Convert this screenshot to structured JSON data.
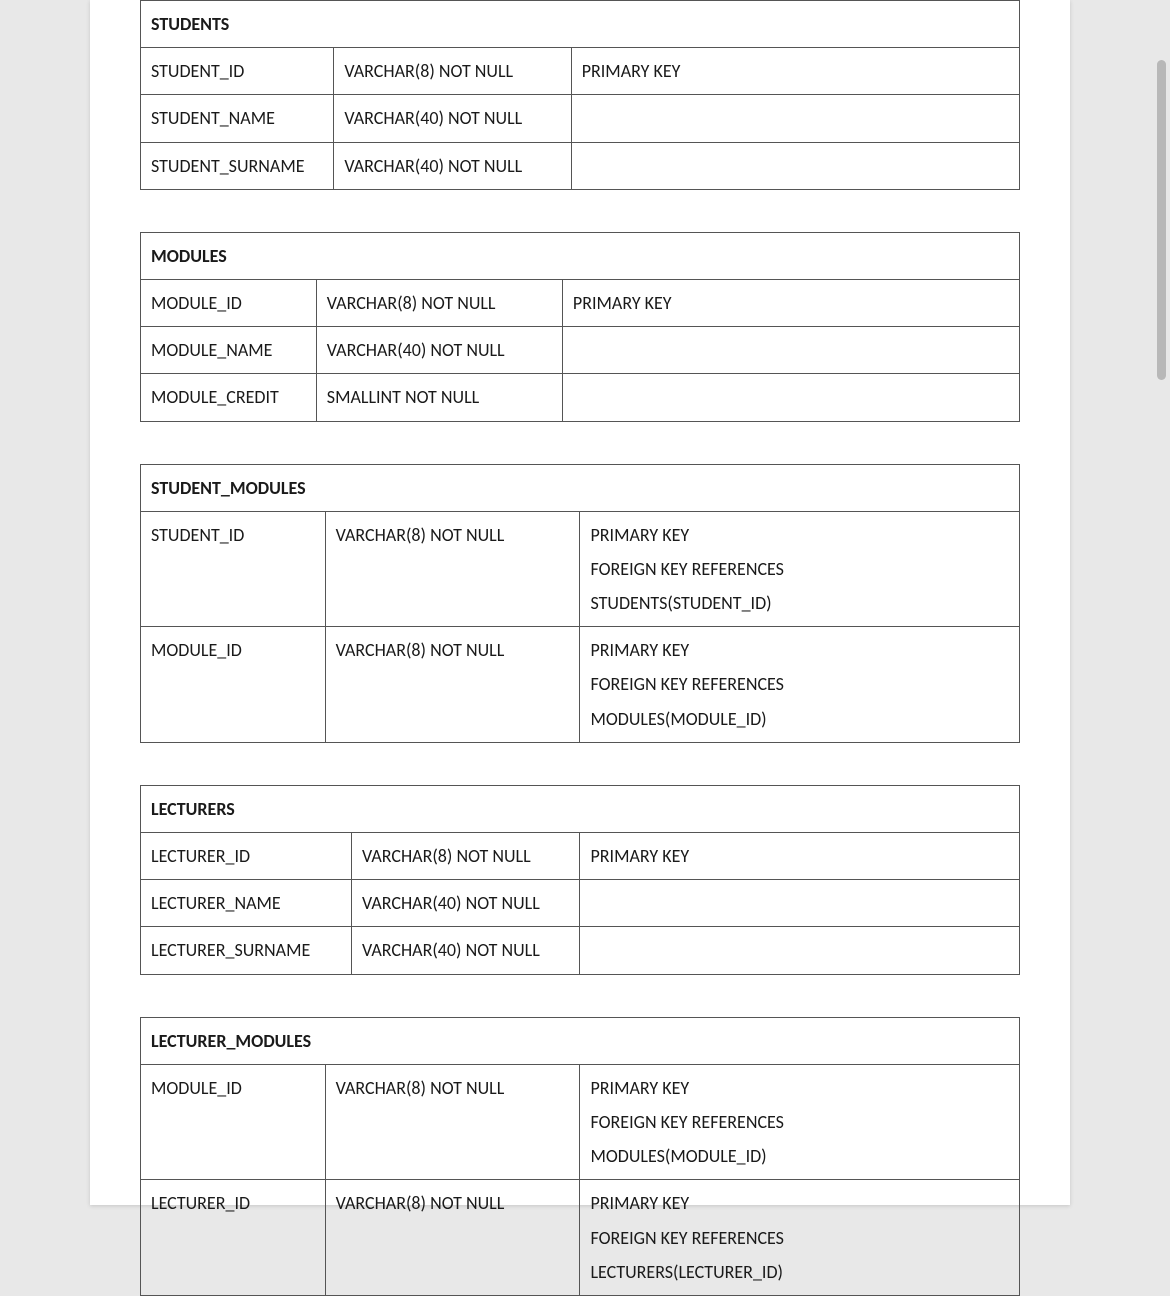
{
  "page": {
    "background_color": "#e8e8e8",
    "paper_color": "#ffffff",
    "text_color": "#1a1a1a",
    "border_color": "#555555",
    "font_family": "Calibri",
    "font_size_pt": 13
  },
  "tables": {
    "students": {
      "title": "STUDENTS",
      "col_widths_pct": [
        22,
        27,
        51
      ],
      "rows": [
        {
          "name": "STUDENT_ID",
          "type": "VARCHAR(8) NOT NULL",
          "constraints": [
            "PRIMARY KEY"
          ]
        },
        {
          "name": "STUDENT_NAME",
          "type": "VARCHAR(40) NOT NULL",
          "constraints": [
            ""
          ]
        },
        {
          "name": "STUDENT_SURNAME",
          "type": "VARCHAR(40) NOT NULL",
          "constraints": [
            ""
          ]
        }
      ]
    },
    "modules": {
      "title": "MODULES",
      "col_widths_pct": [
        20,
        28,
        52
      ],
      "rows": [
        {
          "name": "MODULE_ID",
          "type": "VARCHAR(8) NOT NULL",
          "constraints": [
            "PRIMARY KEY"
          ]
        },
        {
          "name": "MODULE_NAME",
          "type": "VARCHAR(40) NOT NULL",
          "constraints": [
            ""
          ]
        },
        {
          "name": "MODULE_CREDIT",
          "type": "SMALLINT NOT NULL",
          "constraints": [
            ""
          ]
        }
      ]
    },
    "student_modules": {
      "title": "STUDENT_MODULES",
      "col_widths_pct": [
        21,
        29,
        50
      ],
      "rows": [
        {
          "name": "STUDENT_ID",
          "type": "VARCHAR(8) NOT NULL",
          "constraints": [
            "PRIMARY KEY",
            "FOREIGN KEY REFERENCES",
            "STUDENTS(STUDENT_ID)"
          ]
        },
        {
          "name": "MODULE_ID",
          "type": "VARCHAR(8) NOT NULL",
          "constraints": [
            "PRIMARY KEY",
            "FOREIGN KEY REFERENCES",
            "MODULES(MODULE_ID)"
          ]
        }
      ]
    },
    "lecturers": {
      "title": "LECTURERS",
      "col_widths_pct": [
        24,
        26,
        50
      ],
      "rows": [
        {
          "name": "LECTURER_ID",
          "type": "VARCHAR(8) NOT NULL",
          "constraints": [
            "PRIMARY KEY"
          ]
        },
        {
          "name": "LECTURER_NAME",
          "type": "VARCHAR(40) NOT NULL",
          "constraints": [
            ""
          ]
        },
        {
          "name": "LECTURER_SURNAME",
          "type": "VARCHAR(40) NOT NULL",
          "constraints": [
            ""
          ]
        }
      ]
    },
    "lecturer_modules": {
      "title": "LECTURER_MODULES",
      "col_widths_pct": [
        21,
        29,
        50
      ],
      "rows": [
        {
          "name": "MODULE_ID",
          "type": "VARCHAR(8) NOT NULL",
          "constraints": [
            "PRIMARY KEY",
            "FOREIGN KEY REFERENCES",
            "MODULES(MODULE_ID)"
          ]
        },
        {
          "name": "LECTURER_ID",
          "type": "VARCHAR(8) NOT NULL",
          "constraints": [
            "PRIMARY KEY",
            "FOREIGN KEY REFERENCES",
            "LECTURERS(LECTURER_ID)"
          ]
        }
      ]
    }
  },
  "table_order": [
    "students",
    "modules",
    "student_modules",
    "lecturers",
    "lecturer_modules"
  ]
}
